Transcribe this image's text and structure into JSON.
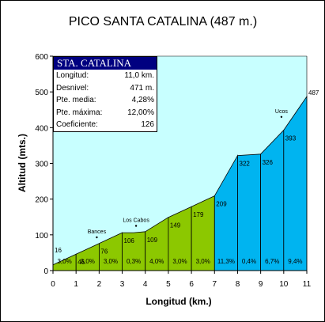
{
  "chart_data": {
    "type": "area",
    "title": "PICO SANTA CATALINA (487 m.)",
    "xlabel": "Longitud (km.)",
    "ylabel": "Altitud (mts.)",
    "xlim": [
      0,
      11
    ],
    "ylim": [
      0,
      600
    ],
    "x_ticks": [
      "0",
      "1",
      "2",
      "3",
      "4",
      "5",
      "6",
      "7",
      "8",
      "9",
      "10",
      "11"
    ],
    "y_ticks": [
      "0",
      "100",
      "200",
      "300",
      "400",
      "500",
      "600"
    ],
    "profile_x": [
      0,
      1,
      2,
      3,
      3.5,
      4,
      5,
      6,
      7,
      8,
      9,
      10,
      11
    ],
    "profile_y": [
      16,
      46,
      76,
      106,
      106,
      109,
      149,
      179,
      209,
      322,
      326,
      393,
      487
    ],
    "altitude_labels": [
      {
        "x": 0,
        "text": "16"
      },
      {
        "x": 1,
        "text": "46"
      },
      {
        "x": 2,
        "text": "76"
      },
      {
        "x": 3,
        "text": "106"
      },
      {
        "x": 4,
        "text": "109"
      },
      {
        "x": 5,
        "text": "149"
      },
      {
        "x": 6,
        "text": "179"
      },
      {
        "x": 7,
        "text": "209"
      },
      {
        "x": 8,
        "text": "322"
      },
      {
        "x": 9,
        "text": "326"
      },
      {
        "x": 10,
        "text": "393"
      },
      {
        "x": 11,
        "text": "487"
      }
    ],
    "segments": [
      {
        "from": 0,
        "to": 1,
        "slope": "3,0%",
        "color": "#8cc800"
      },
      {
        "from": 1,
        "to": 2,
        "slope": "3,0%",
        "color": "#8cc800"
      },
      {
        "from": 2,
        "to": 3,
        "slope": "3,0%",
        "color": "#8cc800"
      },
      {
        "from": 3,
        "to": 4,
        "slope": "0,3%",
        "color": "#8cc800"
      },
      {
        "from": 4,
        "to": 5,
        "slope": "4,0%",
        "color": "#8cc800"
      },
      {
        "from": 5,
        "to": 6,
        "slope": "3,0%",
        "color": "#8cc800"
      },
      {
        "from": 6,
        "to": 7,
        "slope": "3,0%",
        "color": "#8cc800"
      },
      {
        "from": 7,
        "to": 8,
        "slope": "11,3%",
        "color": "#00b4f0"
      },
      {
        "from": 8,
        "to": 9,
        "slope": "0,4%",
        "color": "#00b4f0"
      },
      {
        "from": 9,
        "to": 10,
        "slope": "6,7%",
        "color": "#00b4f0"
      },
      {
        "from": 10,
        "to": 11,
        "slope": "9,4%",
        "color": "#00b4f0"
      }
    ],
    "sky_color": "#c8ffff",
    "places": [
      {
        "name": "Bances",
        "x": 1.9,
        "y": 93
      },
      {
        "name": "Los Cabos",
        "x": 3.6,
        "y": 125
      },
      {
        "name": "Ucos",
        "x": 9.9,
        "y": 430
      }
    ],
    "grid": false
  },
  "infobox": {
    "header": "STA. CATALINA",
    "rows": [
      {
        "label": "Longitud:",
        "value": "11,0 km."
      },
      {
        "label": "Desnivel:",
        "value": "471 m."
      },
      {
        "label": "Pte. media:",
        "value": "4,28%"
      },
      {
        "label": "Pte. máxima:",
        "value": "12,00%"
      },
      {
        "label": "Coeficiente:",
        "value": "126"
      }
    ]
  }
}
